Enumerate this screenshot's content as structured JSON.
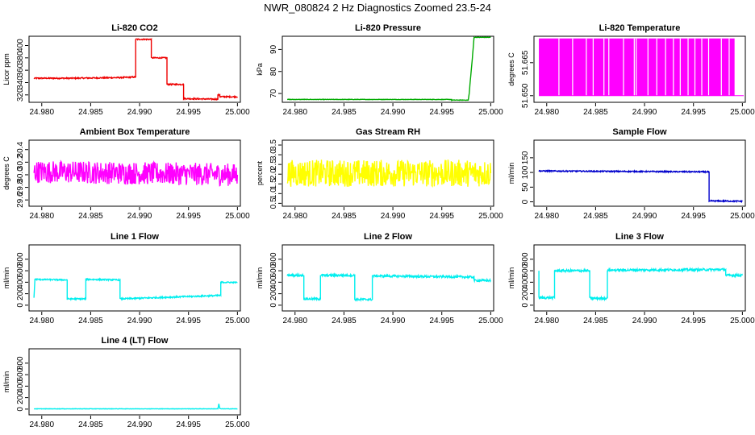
{
  "page": {
    "title": "NWR_080824  2 Hz Diagnostics Zoomed 23.5-24"
  },
  "chart_data": [
    {
      "type": "line",
      "title": "Li-820 CO2",
      "ylabel": "Licor ppm",
      "color": "#ee0000",
      "xlim": [
        24.9787,
        25.0003
      ],
      "xticks": [
        24.98,
        24.985,
        24.99,
        24.995,
        25.0
      ],
      "xtick_labels": [
        "24.980",
        "24.985",
        "24.990",
        "24.995",
        "25.000"
      ],
      "ylim": [
        308,
        415
      ],
      "yticks": [
        320,
        340,
        360,
        380,
        400
      ],
      "ytick_labels": [
        "320",
        "340",
        "360",
        "380",
        "400"
      ],
      "noise": 1,
      "series": [
        {
          "x": [
            24.9792,
            24.983,
            24.988,
            24.9896,
            24.9896,
            24.9912,
            24.9912,
            24.9928,
            24.9928,
            24.9945,
            24.9945,
            24.998,
            24.998,
            24.9982,
            24.9982,
            25.0
          ],
          "y": [
            347,
            347,
            348,
            349,
            410,
            410,
            380,
            380,
            337,
            337,
            314,
            313,
            320,
            320,
            317,
            317
          ]
        }
      ]
    },
    {
      "type": "line",
      "title": "Li-820 Pressure",
      "ylabel": "kPa",
      "color": "#00aa00",
      "xlim": [
        24.9787,
        25.0003
      ],
      "xticks": [
        24.98,
        24.985,
        24.99,
        24.995,
        25.0
      ],
      "xtick_labels": [
        "24.980",
        "24.985",
        "24.990",
        "24.995",
        "25.000"
      ],
      "ylim": [
        66,
        96
      ],
      "yticks": [
        70,
        80,
        90
      ],
      "ytick_labels": [
        "70",
        "80",
        "90"
      ],
      "noise": 0.1,
      "series": [
        {
          "x": [
            24.9792,
            24.996,
            24.996,
            24.9977,
            24.9978,
            24.998,
            24.9982,
            24.9983,
            25.0
          ],
          "y": [
            67.3,
            67.3,
            67.0,
            67.0,
            70,
            80,
            90,
            95.5,
            95.5
          ]
        }
      ]
    },
    {
      "type": "bar",
      "title": "Li-820 Temperature",
      "ylabel": "degrees C",
      "color": "#ff00ff",
      "xlim": [
        24.9787,
        25.0003
      ],
      "xticks": [
        24.98,
        24.985,
        24.99,
        24.995,
        25.0
      ],
      "xtick_labels": [
        "24.980",
        "24.985",
        "24.990",
        "24.995",
        "25.000"
      ],
      "ylim": [
        51.647,
        51.677
      ],
      "yticks": [
        51.65,
        51.665
      ],
      "ytick_labels": [
        "51.650",
        "51.665"
      ],
      "gaps": [
        24.9812,
        24.9826,
        24.984,
        24.9847,
        24.9858,
        24.9863,
        24.9878,
        24.9889,
        24.9891,
        24.9903,
        24.9912,
        24.9921,
        24.9929,
        24.9936,
        24.9944,
        24.9951,
        24.9958,
        24.9965,
        24.9978,
        24.9986
      ],
      "series": [
        {
          "x": [
            24.9792,
            24.9992
          ],
          "y": [
            51.65,
            51.65
          ],
          "high": 51.676
        }
      ]
    },
    {
      "type": "line",
      "title": "Ambient Box Temperature",
      "ylabel": "degrees C",
      "color": "#ff00ff",
      "xlim": [
        24.9787,
        25.0003
      ],
      "xticks": [
        24.98,
        24.985,
        24.99,
        24.995,
        25.0
      ],
      "xtick_labels": [
        "24.980",
        "24.985",
        "24.990",
        "24.995",
        "25.000"
      ],
      "ylim": [
        29.5,
        30.55
      ],
      "yticks": [
        29.6,
        29.8,
        30.0,
        30.2,
        30.4
      ],
      "ytick_labels": [
        "29.6",
        "29.8",
        "30.0",
        "30.2",
        "30.4"
      ],
      "noise": 0.18,
      "series": [
        {
          "x": [
            24.9792,
            25.0
          ],
          "y": [
            30.05,
            30.0
          ]
        }
      ]
    },
    {
      "type": "line",
      "title": "Gas Stream RH",
      "ylabel": "percent",
      "color": "#ffff00",
      "xlim": [
        24.9787,
        25.0003
      ],
      "xticks": [
        24.98,
        24.985,
        24.99,
        24.995,
        25.0
      ],
      "xtick_labels": [
        "24.980",
        "24.985",
        "24.990",
        "24.995",
        "25.000"
      ],
      "ylim": [
        0.35,
        3.75
      ],
      "yticks": [
        0.5,
        1.0,
        1.5,
        2.0,
        2.5,
        3.0,
        3.5
      ],
      "ytick_labels": [
        "0.5",
        "1.0",
        "1.5",
        "2.0",
        "2.5",
        "3.0",
        "3.5"
      ],
      "noise": 0.7,
      "series": [
        {
          "x": [
            24.9792,
            25.0
          ],
          "y": [
            2.05,
            2.05
          ]
        }
      ]
    },
    {
      "type": "line",
      "title": "Sample Flow",
      "ylabel": "ml/min",
      "color": "#0000cc",
      "xlim": [
        24.9787,
        25.0003
      ],
      "xticks": [
        24.98,
        24.985,
        24.99,
        24.995,
        25.0
      ],
      "xtick_labels": [
        "24.980",
        "24.985",
        "24.990",
        "24.995",
        "25.000"
      ],
      "ylim": [
        -15,
        210
      ],
      "yticks": [
        0,
        50,
        100,
        150
      ],
      "ytick_labels": [
        "0",
        "50",
        "100",
        "150"
      ],
      "noise": 2,
      "series": [
        {
          "x": [
            24.9792,
            24.9966,
            24.9966,
            24.9968,
            25.0
          ],
          "y": [
            105,
            102,
            0,
            3,
            2
          ]
        }
      ]
    },
    {
      "type": "line",
      "title": "Line 1 Flow",
      "ylabel": "ml/min",
      "color": "#00eeee",
      "xlim": [
        24.9787,
        25.0003
      ],
      "xticks": [
        24.98,
        24.985,
        24.99,
        24.995,
        25.0
      ],
      "xtick_labels": [
        "24.980",
        "24.985",
        "24.990",
        "24.995",
        "25.000"
      ],
      "ylim": [
        -100,
        1050
      ],
      "yticks": [
        0,
        200,
        400,
        600,
        800
      ],
      "ytick_labels": [
        "0",
        "200",
        "400",
        "600",
        "800"
      ],
      "noise": 12,
      "series": [
        {
          "x": [
            24.9792,
            24.9793,
            24.9826,
            24.9826,
            24.9845,
            24.9845,
            24.988,
            24.988,
            24.9983,
            24.9983,
            25.0
          ],
          "y": [
            130,
            450,
            440,
            110,
            110,
            450,
            440,
            110,
            170,
            400,
            395
          ]
        }
      ]
    },
    {
      "type": "line",
      "title": "Line 2 Flow",
      "ylabel": "ml/min",
      "color": "#00eeee",
      "xlim": [
        24.9787,
        25.0003
      ],
      "xticks": [
        24.98,
        24.985,
        24.99,
        24.995,
        25.0
      ],
      "xtick_labels": [
        "24.980",
        "24.985",
        "24.990",
        "24.995",
        "25.000"
      ],
      "ylim": [
        -100,
        1050
      ],
      "yticks": [
        0,
        200,
        400,
        600,
        800
      ],
      "ytick_labels": [
        "0",
        "200",
        "400",
        "600",
        "800"
      ],
      "noise": 18,
      "series": [
        {
          "x": [
            24.9792,
            24.9809,
            24.9809,
            24.9826,
            24.9826,
            24.9861,
            24.9861,
            24.9879,
            24.9879,
            24.9983,
            24.9983,
            25.0
          ],
          "y": [
            520,
            520,
            110,
            110,
            520,
            520,
            100,
            100,
            510,
            490,
            430,
            430
          ]
        }
      ]
    },
    {
      "type": "line",
      "title": "Line 3 Flow",
      "ylabel": "ml/min",
      "color": "#00eeee",
      "xlim": [
        24.9787,
        25.0003
      ],
      "xticks": [
        24.98,
        24.985,
        24.99,
        24.995,
        25.0
      ],
      "xtick_labels": [
        "24.980",
        "24.985",
        "24.990",
        "24.995",
        "25.000"
      ],
      "ylim": [
        -100,
        1050
      ],
      "yticks": [
        0,
        200,
        400,
        600,
        800
      ],
      "ytick_labels": [
        "0",
        "200",
        "400",
        "600",
        "800"
      ],
      "noise": 20,
      "series": [
        {
          "x": [
            24.9792,
            24.9792,
            24.9793,
            24.9808,
            24.9808,
            24.9844,
            24.9844,
            24.9862,
            24.9862,
            24.998,
            24.9983,
            24.9983,
            25.0
          ],
          "y": [
            600,
            130,
            130,
            130,
            600,
            600,
            120,
            120,
            610,
            620,
            620,
            520,
            520
          ]
        }
      ]
    },
    {
      "type": "line",
      "title": "Line 4 (LT) Flow",
      "ylabel": "ml/min",
      "color": "#00eeee",
      "xlim": [
        24.9787,
        25.0003
      ],
      "xticks": [
        24.98,
        24.985,
        24.99,
        24.995,
        25.0
      ],
      "xtick_labels": [
        "24.980",
        "24.985",
        "24.990",
        "24.995",
        "25.000"
      ],
      "ylim": [
        -100,
        1050
      ],
      "yticks": [
        0,
        200,
        400,
        600,
        800
      ],
      "ytick_labels": [
        "0",
        "200",
        "400",
        "600",
        "800"
      ],
      "noise": 3,
      "series": [
        {
          "x": [
            24.9792,
            24.998,
            24.9981,
            24.9982,
            24.9983,
            25.0
          ],
          "y": [
            5,
            5,
            90,
            10,
            5,
            5
          ]
        }
      ]
    }
  ]
}
